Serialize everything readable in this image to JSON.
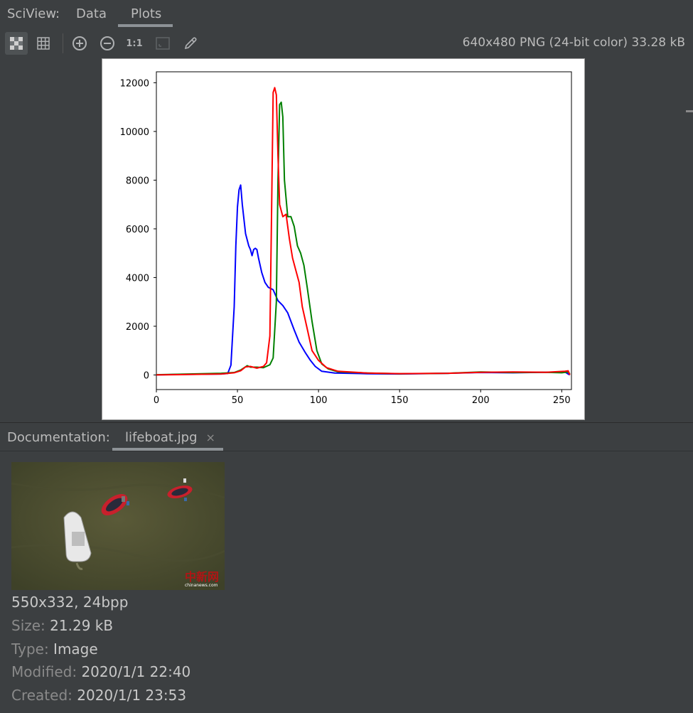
{
  "header": {
    "title": "SciView:",
    "tabs": [
      {
        "label": "Data",
        "active": false
      },
      {
        "label": "Plots",
        "active": true
      }
    ]
  },
  "toolbar": {
    "buttons": [
      {
        "icon": "chessboard-icon",
        "active": true
      },
      {
        "icon": "grid-icon",
        "active": false
      },
      {
        "icon": "zoom-in-icon",
        "active": false
      },
      {
        "icon": "zoom-out-icon",
        "active": false
      },
      {
        "icon": "actual-size-icon",
        "label": "1:1",
        "active": false
      },
      {
        "icon": "fit-window-icon",
        "enabled": false
      },
      {
        "icon": "color-picker-icon",
        "active": false
      }
    ],
    "image_info": "640x480 PNG (24-bit color) 33.28 kB"
  },
  "chart_data": {
    "type": "line",
    "title": "",
    "xlabel": "",
    "ylabel": "",
    "xlim": [
      0,
      256
    ],
    "ylim": [
      -600,
      12450
    ],
    "xticks": [
      0,
      50,
      100,
      150,
      200,
      250
    ],
    "yticks": [
      0,
      2000,
      4000,
      6000,
      8000,
      10000,
      12000
    ],
    "grid": false,
    "series": [
      {
        "color": "#0000ff",
        "points": [
          [
            0,
            0
          ],
          [
            10,
            15
          ],
          [
            20,
            25
          ],
          [
            30,
            30
          ],
          [
            40,
            40
          ],
          [
            44,
            60
          ],
          [
            46,
            400
          ],
          [
            48,
            2800
          ],
          [
            49,
            5300
          ],
          [
            50,
            6900
          ],
          [
            51,
            7600
          ],
          [
            52,
            7800
          ],
          [
            53,
            7000
          ],
          [
            55,
            5800
          ],
          [
            57,
            5300
          ],
          [
            58,
            5150
          ],
          [
            59,
            4900
          ],
          [
            60,
            5150
          ],
          [
            61,
            5200
          ],
          [
            62,
            5150
          ],
          [
            63,
            4800
          ],
          [
            65,
            4200
          ],
          [
            67,
            3800
          ],
          [
            69,
            3600
          ],
          [
            72,
            3500
          ],
          [
            75,
            3050
          ],
          [
            78,
            2850
          ],
          [
            81,
            2550
          ],
          [
            85,
            1850
          ],
          [
            88,
            1350
          ],
          [
            92,
            900
          ],
          [
            95,
            600
          ],
          [
            98,
            350
          ],
          [
            102,
            150
          ],
          [
            110,
            80
          ],
          [
            130,
            50
          ],
          [
            150,
            40
          ],
          [
            180,
            70
          ],
          [
            200,
            100
          ],
          [
            220,
            90
          ],
          [
            240,
            110
          ],
          [
            252,
            120
          ],
          [
            254,
            40
          ],
          [
            255,
            0
          ]
        ]
      },
      {
        "color": "#008000",
        "points": [
          [
            0,
            10
          ],
          [
            20,
            40
          ],
          [
            40,
            70
          ],
          [
            48,
            100
          ],
          [
            52,
            200
          ],
          [
            56,
            380
          ],
          [
            58,
            320
          ],
          [
            62,
            320
          ],
          [
            66,
            300
          ],
          [
            70,
            420
          ],
          [
            72,
            700
          ],
          [
            74,
            3000
          ],
          [
            75,
            8000
          ],
          [
            76,
            11100
          ],
          [
            77,
            11200
          ],
          [
            78,
            10600
          ],
          [
            79,
            8000
          ],
          [
            81,
            6500
          ],
          [
            83,
            6500
          ],
          [
            85,
            6100
          ],
          [
            87,
            5300
          ],
          [
            89,
            5000
          ],
          [
            91,
            4500
          ],
          [
            93,
            3600
          ],
          [
            96,
            2200
          ],
          [
            99,
            1000
          ],
          [
            102,
            450
          ],
          [
            106,
            250
          ],
          [
            112,
            130
          ],
          [
            130,
            80
          ],
          [
            150,
            50
          ],
          [
            180,
            70
          ],
          [
            200,
            120
          ],
          [
            220,
            100
          ],
          [
            240,
            110
          ],
          [
            250,
            90
          ],
          [
            254,
            120
          ],
          [
            255,
            40
          ]
        ]
      },
      {
        "color": "#ff0000",
        "points": [
          [
            0,
            0
          ],
          [
            20,
            20
          ],
          [
            40,
            40
          ],
          [
            48,
            90
          ],
          [
            52,
            170
          ],
          [
            55,
            330
          ],
          [
            58,
            350
          ],
          [
            62,
            280
          ],
          [
            66,
            350
          ],
          [
            68,
            500
          ],
          [
            70,
            1600
          ],
          [
            71,
            6500
          ],
          [
            72,
            11600
          ],
          [
            73,
            11800
          ],
          [
            74,
            11500
          ],
          [
            75,
            9000
          ],
          [
            76,
            7000
          ],
          [
            78,
            6500
          ],
          [
            80,
            6600
          ],
          [
            82,
            5600
          ],
          [
            84,
            4800
          ],
          [
            86,
            4300
          ],
          [
            88,
            3800
          ],
          [
            90,
            2800
          ],
          [
            93,
            1900
          ],
          [
            96,
            1000
          ],
          [
            100,
            600
          ],
          [
            105,
            300
          ],
          [
            112,
            150
          ],
          [
            130,
            80
          ],
          [
            150,
            55
          ],
          [
            180,
            70
          ],
          [
            200,
            110
          ],
          [
            220,
            120
          ],
          [
            240,
            110
          ],
          [
            252,
            150
          ],
          [
            254,
            170
          ],
          [
            255,
            0
          ]
        ]
      }
    ]
  },
  "documentation": {
    "label": "Documentation:",
    "tab": {
      "label": "lifeboat.jpg",
      "close": "×"
    },
    "thumbnail_watermark": "中新网",
    "thumbnail_watermark_sub": "chinanews.com",
    "dimensions": "550x332, 24bpp",
    "size_key": "Size:",
    "size_value": "21.29 kB",
    "type_key": "Type:",
    "type_value": "Image",
    "modified_key": "Modified:",
    "modified_value": "2020/1/1 22:40",
    "created_key": "Created:",
    "created_value": "2020/1/1 23:53"
  }
}
